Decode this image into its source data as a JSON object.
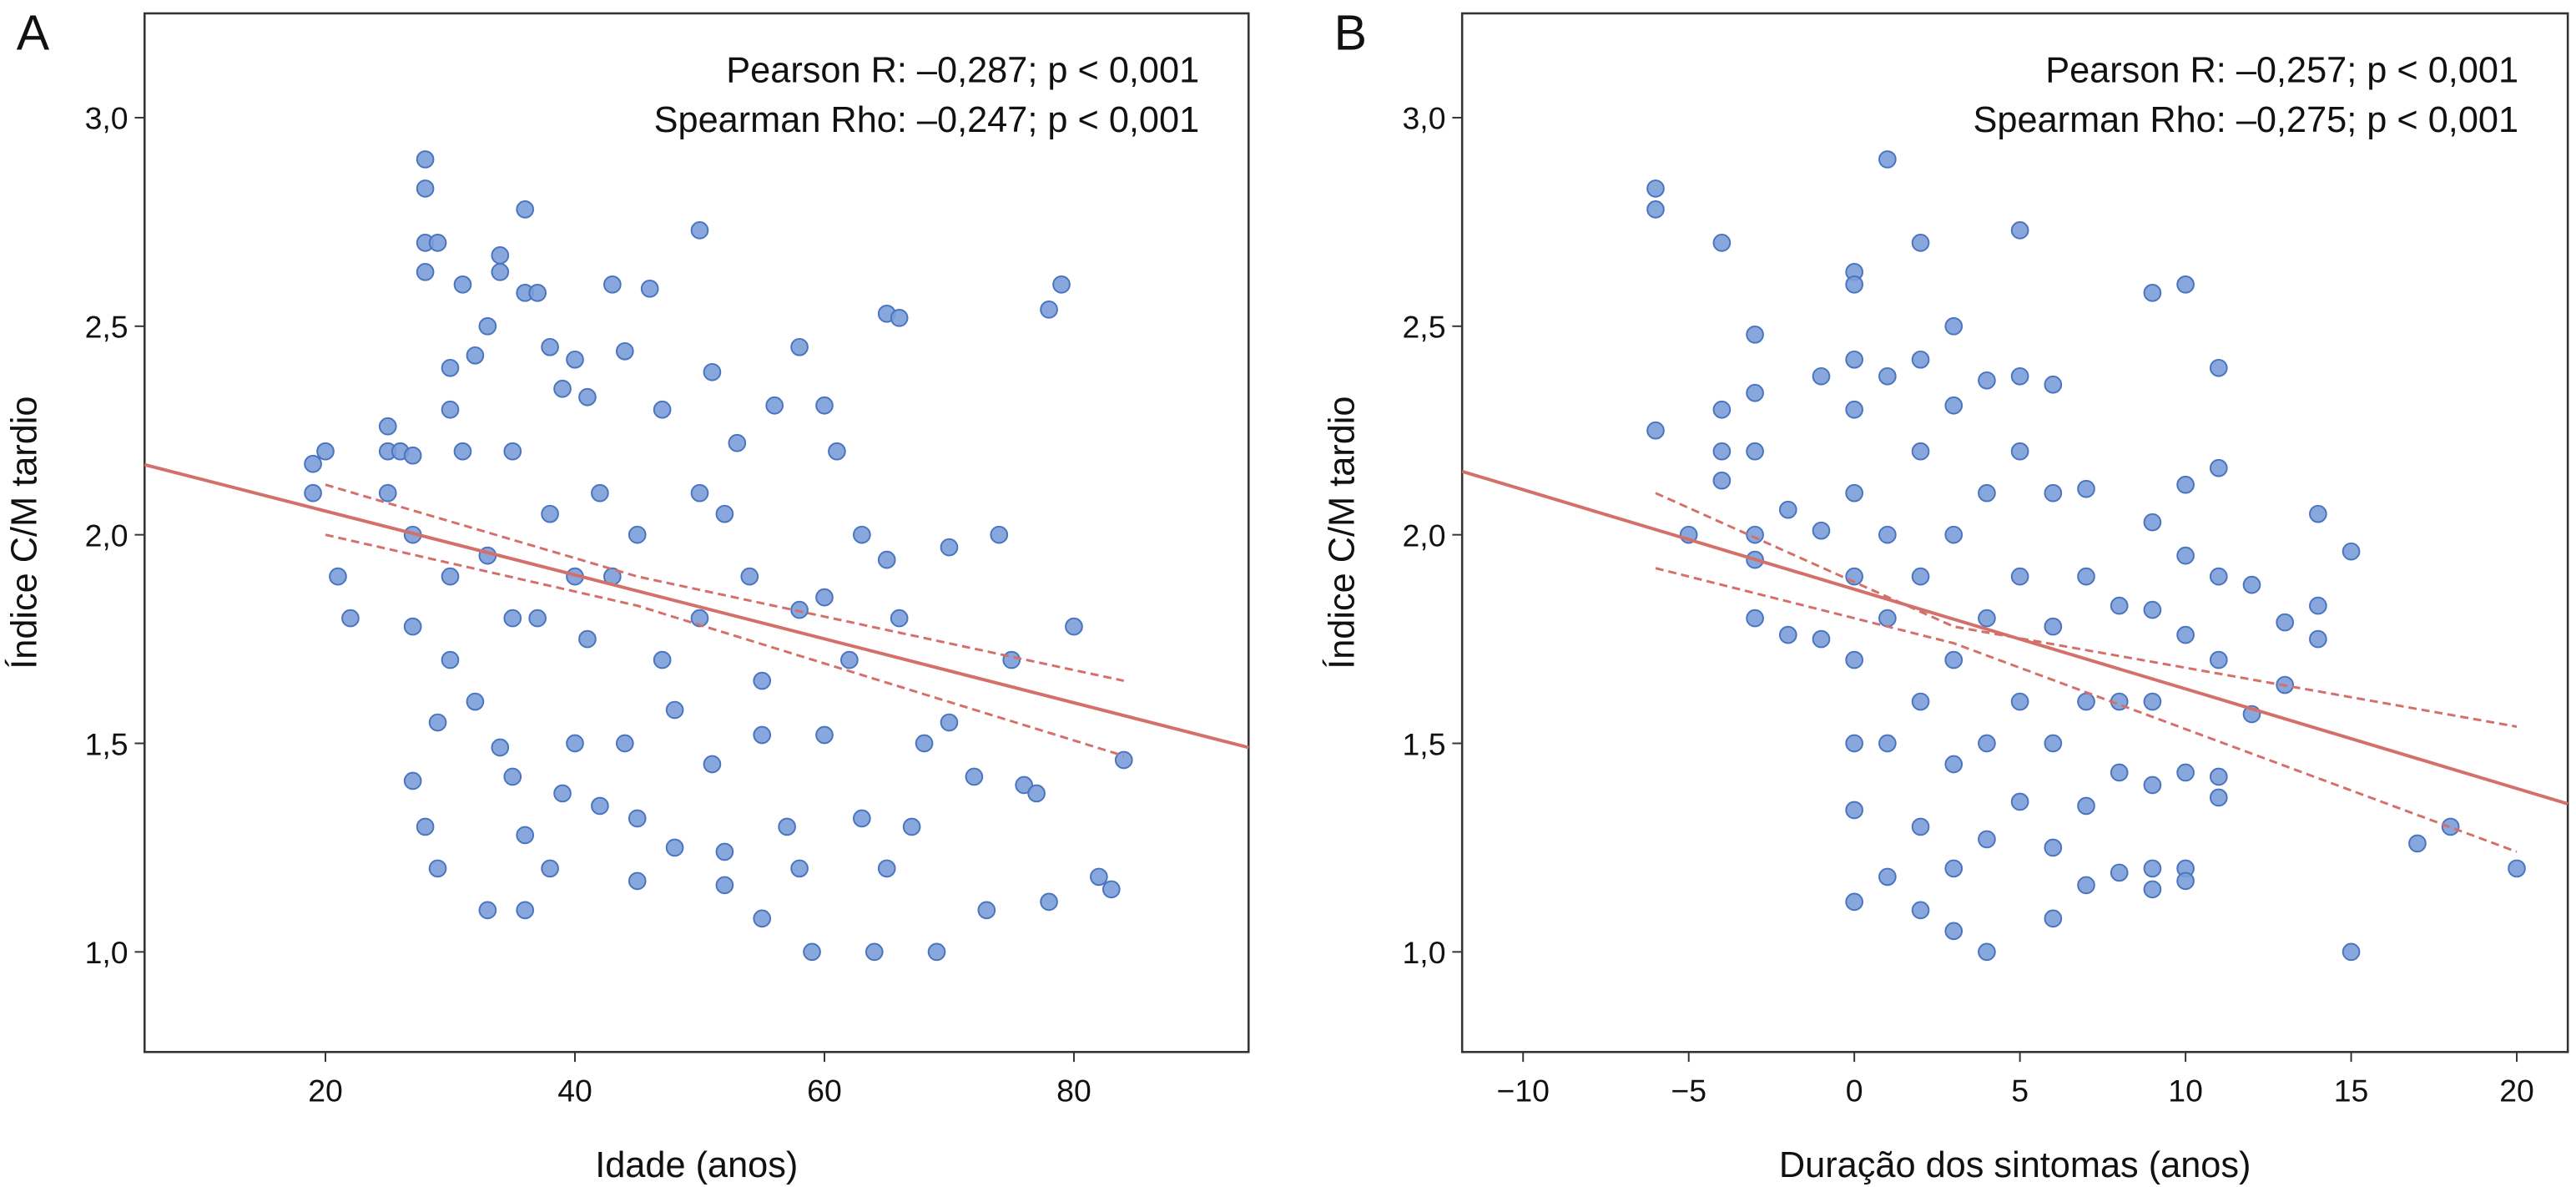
{
  "chart_data": [
    {
      "type": "scatter",
      "panel": "A",
      "xlabel": "Idade (anos)",
      "ylabel": "Índice C/M tardio",
      "annotations": [
        "Pearson R: –0,287; p < 0,001",
        "Spearman Rho: –0,247; p < 0,001"
      ],
      "xlim": [
        5.5,
        94
      ],
      "ylim": [
        0.76,
        3.25
      ],
      "xticks": [
        20,
        40,
        60,
        80
      ],
      "yticks": [
        {
          "value": 1.0,
          "label": "1,0"
        },
        {
          "value": 1.5,
          "label": "1,5"
        },
        {
          "value": 2.0,
          "label": "2,0"
        },
        {
          "value": 2.5,
          "label": "2,5"
        },
        {
          "value": 3.0,
          "label": "3,0"
        }
      ],
      "series": [
        {
          "color": "#7b9fd9",
          "x": [
            19,
            19,
            20,
            21,
            22,
            25,
            25,
            25,
            26,
            27,
            27,
            27,
            27,
            28,
            28,
            28,
            28,
            28,
            29,
            29,
            29,
            30,
            30,
            30,
            30,
            31,
            31,
            32,
            32,
            33,
            33,
            34,
            34,
            34,
            35,
            35,
            36,
            36,
            36,
            36,
            37,
            37,
            38,
            38,
            39,
            39,
            40,
            40,
            40,
            41,
            42,
            42,
            43,
            43,
            44,
            44,
            45,
            45,
            46,
            47,
            47,
            48,
            48,
            50,
            50,
            50,
            51,
            51,
            52,
            52,
            53,
            54,
            55,
            55,
            56,
            57,
            58,
            58,
            58,
            59,
            60,
            60,
            61,
            62,
            63,
            64,
            65,
            65,
            66,
            66,
            67,
            68,
            69,
            70,
            70,
            72,
            73,
            74,
            75,
            76,
            77,
            78,
            78,
            79,
            80,
            82,
            83,
            84,
            65,
            55,
            45,
            35,
            33,
            38,
            41,
            52,
            60,
            63
          ],
          "y": [
            2.17,
            2.1,
            2.2,
            1.9,
            1.8,
            2.26,
            2.2,
            2.1,
            2.2,
            2.19,
            2.0,
            1.78,
            1.41,
            2.9,
            2.83,
            2.7,
            2.63,
            1.3,
            2.7,
            1.2,
            1.55,
            2.4,
            2.3,
            1.9,
            1.7,
            2.6,
            2.2,
            2.43,
            1.6,
            2.5,
            1.1,
            2.67,
            2.63,
            1.49,
            2.2,
            1.42,
            2.78,
            2.58,
            1.28,
            1.1,
            2.58,
            1.8,
            2.45,
            1.2,
            2.35,
            1.38,
            2.42,
            1.9,
            1.5,
            2.33,
            2.1,
            1.35,
            2.6,
            1.9,
            2.44,
            1.5,
            1.32,
            1.17,
            2.59,
            2.3,
            1.7,
            1.25,
            1.58,
            2.73,
            2.1,
            1.8,
            2.39,
            1.45,
            1.24,
            1.16,
            2.22,
            1.9,
            1.08,
            1.52,
            2.31,
            1.3,
            2.45,
            1.82,
            1.2,
            1.0,
            2.31,
            1.52,
            2.2,
            1.7,
            1.32,
            1.0,
            2.53,
            1.2,
            2.52,
            1.8,
            1.3,
            1.5,
            1.0,
            1.55,
            1.97,
            1.42,
            1.1,
            2.0,
            1.7,
            1.4,
            1.38,
            2.54,
            1.12,
            2.6,
            1.78,
            1.18,
            1.15,
            1.46,
            1.94,
            1.65,
            2.0,
            1.8,
            1.95,
            2.05,
            1.75,
            2.05,
            1.85,
            2.0
          ]
        }
      ],
      "lines": [
        {
          "color": "#d4706a",
          "style": "solid",
          "x": [
            5.5,
            94
          ],
          "y": [
            2.168,
            1.49
          ]
        },
        {
          "color": "#d4706a",
          "style": "dashed",
          "x": [
            20,
            45,
            84
          ],
          "y": [
            2.12,
            1.9,
            1.65
          ]
        },
        {
          "color": "#d4706a",
          "style": "dashed",
          "x": [
            20,
            45,
            84
          ],
          "y": [
            2.0,
            1.83,
            1.47
          ]
        }
      ]
    },
    {
      "type": "scatter",
      "panel": "B",
      "xlabel": "Duração dos sintomas (anos)",
      "ylabel": "Índice C/M tardio",
      "annotations": [
        "Pearson R: –0,257; p < 0,001",
        "Spearman Rho: –0,275; p < 0,001"
      ],
      "xlim": [
        -11.84,
        21.54
      ],
      "ylim": [
        0.76,
        3.25
      ],
      "xticks": [
        {
          "value": -10,
          "label": "−10"
        },
        {
          "value": -5,
          "label": "−5"
        },
        0,
        5,
        10,
        15,
        20
      ],
      "yticks": [
        {
          "value": 1.0,
          "label": "1,0"
        },
        {
          "value": 1.5,
          "label": "1,5"
        },
        {
          "value": 2.0,
          "label": "2,0"
        },
        {
          "value": 2.5,
          "label": "2,5"
        },
        {
          "value": 3.0,
          "label": "3,0"
        }
      ],
      "series": [
        {
          "color": "#7b9fd9",
          "x": [
            -6,
            -6,
            -6,
            -4,
            -4,
            -4,
            -4,
            -3,
            -3,
            -3,
            -3,
            -3,
            -3,
            -5,
            -2,
            -2,
            -1,
            -1,
            -1,
            0,
            0,
            0,
            0,
            0,
            0,
            0,
            0,
            0,
            0,
            1,
            1,
            1,
            1,
            1,
            1,
            2,
            2,
            2,
            2,
            2,
            2,
            2,
            3,
            3,
            3,
            3,
            3,
            3,
            3,
            4,
            4,
            4,
            4,
            4,
            4,
            5,
            5,
            5,
            5,
            5,
            5,
            6,
            6,
            6,
            6,
            6,
            6,
            7,
            7,
            7,
            7,
            7,
            8,
            8,
            8,
            8,
            9,
            9,
            9,
            9,
            9,
            9,
            9,
            10,
            10,
            10,
            10,
            10,
            10,
            10,
            11,
            11,
            11,
            11,
            11,
            11,
            12,
            12,
            13,
            13,
            14,
            14,
            14,
            15,
            15,
            17,
            18,
            20
          ],
          "y": [
            2.83,
            2.78,
            2.25,
            2.7,
            2.3,
            2.2,
            2.13,
            2.48,
            2.34,
            2.2,
            2.0,
            1.94,
            1.8,
            2.0,
            2.06,
            1.76,
            2.38,
            2.01,
            1.75,
            2.63,
            2.6,
            2.42,
            2.3,
            2.1,
            1.9,
            1.7,
            1.5,
            1.34,
            1.12,
            2.9,
            2.38,
            2.0,
            1.8,
            1.5,
            1.18,
            2.7,
            2.42,
            2.2,
            1.9,
            1.6,
            1.3,
            1.1,
            2.5,
            2.31,
            2.0,
            1.7,
            1.45,
            1.2,
            1.05,
            2.37,
            2.1,
            1.8,
            1.5,
            1.27,
            1.0,
            2.73,
            2.38,
            2.2,
            1.9,
            1.6,
            1.36,
            2.36,
            2.1,
            1.78,
            1.5,
            1.25,
            1.08,
            2.11,
            1.9,
            1.6,
            1.35,
            1.16,
            1.83,
            1.6,
            1.43,
            1.19,
            2.58,
            2.03,
            1.82,
            1.6,
            1.4,
            1.2,
            1.15,
            2.6,
            2.12,
            1.95,
            1.76,
            1.43,
            1.2,
            1.17,
            2.4,
            2.16,
            1.9,
            1.7,
            1.42,
            1.37,
            1.88,
            1.57,
            1.79,
            1.64,
            2.05,
            1.83,
            1.75,
            1.96,
            1.0,
            1.26,
            1.3,
            1.2
          ]
        }
      ],
      "lines": [
        {
          "color": "#d4706a",
          "style": "solid",
          "x": [
            -11.84,
            21.54
          ],
          "y": [
            2.152,
            1.355
          ]
        },
        {
          "color": "#d4706a",
          "style": "dashed",
          "x": [
            -6,
            3,
            20
          ],
          "y": [
            2.1,
            1.78,
            1.54
          ]
        },
        {
          "color": "#d4706a",
          "style": "dashed",
          "x": [
            -6,
            3,
            20
          ],
          "y": [
            1.92,
            1.74,
            1.24
          ]
        }
      ]
    }
  ]
}
